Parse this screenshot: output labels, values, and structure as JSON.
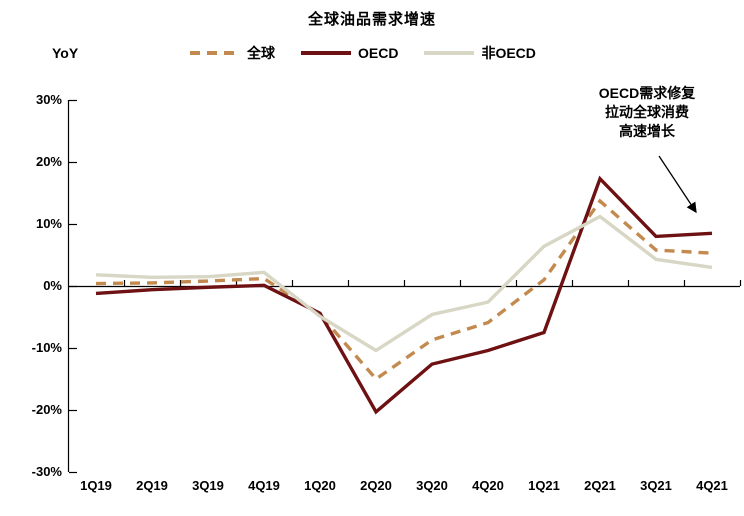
{
  "chart_data": {
    "type": "line",
    "title": "全球油品需求增速",
    "ylabel": "YoY",
    "xlabel": "",
    "grid": false,
    "legend_position": "top",
    "ylim": [
      -30,
      30
    ],
    "yticks": [
      {
        "label": "30%",
        "value": 30
      },
      {
        "label": "20%",
        "value": 20
      },
      {
        "label": "10%",
        "value": 10
      },
      {
        "label": "0%",
        "value": 0
      },
      {
        "label": "-10%",
        "value": -10
      },
      {
        "label": "-20%",
        "value": -20
      },
      {
        "label": "-30%",
        "value": -30
      }
    ],
    "categories": [
      "1Q19",
      "2Q19",
      "3Q19",
      "4Q19",
      "1Q20",
      "2Q20",
      "3Q20",
      "4Q20",
      "1Q21",
      "2Q21",
      "3Q21",
      "4Q21"
    ],
    "series": [
      {
        "name": "全球",
        "color": "#c38a4f",
        "dash": true,
        "values": [
          0.4,
          0.5,
          0.8,
          1.2,
          -4.6,
          -15.0,
          -8.7,
          -5.9,
          1.0,
          13.7,
          5.8,
          5.3
        ]
      },
      {
        "name": "OECD",
        "color": "#6e1113",
        "dash": false,
        "values": [
          -1.2,
          -0.6,
          -0.2,
          0.1,
          -4.4,
          -20.3,
          -12.6,
          -10.4,
          -7.5,
          17.3,
          8.0,
          8.5
        ]
      },
      {
        "name": "非OECD",
        "color": "#d8d6c4",
        "dash": false,
        "values": [
          1.8,
          1.4,
          1.5,
          2.2,
          -4.9,
          -10.4,
          -4.6,
          -2.6,
          6.4,
          11.2,
          4.3,
          3.0
        ]
      }
    ],
    "annotation": {
      "line1": "OECD需求修复",
      "line2": "拉动全球消费",
      "line3": "高速增长"
    },
    "colors": {
      "axis": "#000000",
      "text": "#000000",
      "background": "#ffffff"
    }
  }
}
